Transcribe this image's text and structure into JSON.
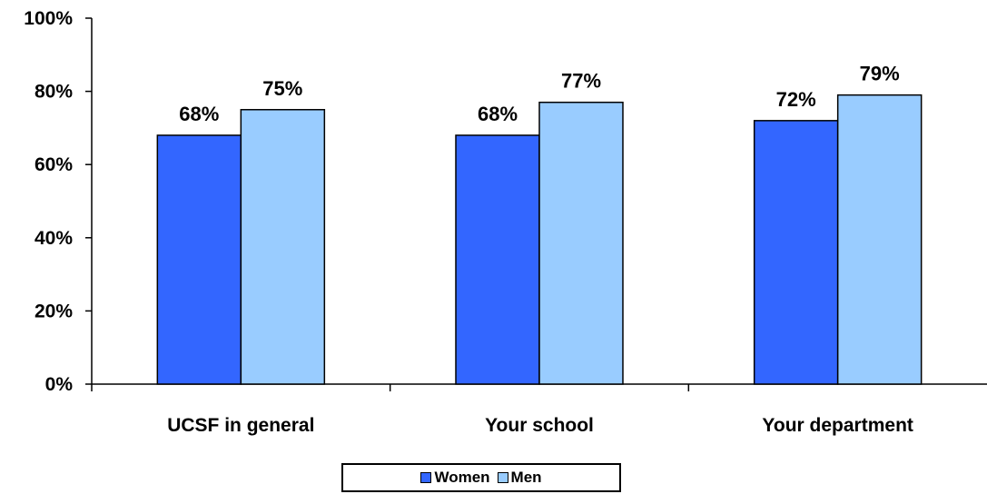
{
  "chart_data": {
    "type": "bar",
    "categories": [
      "UCSF in general",
      "Your school",
      "Your department"
    ],
    "series": [
      {
        "name": "Women",
        "values": [
          68,
          68,
          72
        ],
        "labels": [
          "68%",
          "68%",
          "72%"
        ],
        "color": "#3366FF"
      },
      {
        "name": "Men",
        "values": [
          75,
          77,
          79
        ],
        "labels": [
          "75%",
          "77%",
          "79%"
        ],
        "color": "#99CCFF"
      }
    ],
    "yticks": [
      "0%",
      "20%",
      "40%",
      "60%",
      "80%",
      "100%"
    ],
    "ylim": [
      0,
      100
    ],
    "grid": false,
    "legend_position": "bottom",
    "title": "",
    "xlabel": "",
    "ylabel": ""
  }
}
